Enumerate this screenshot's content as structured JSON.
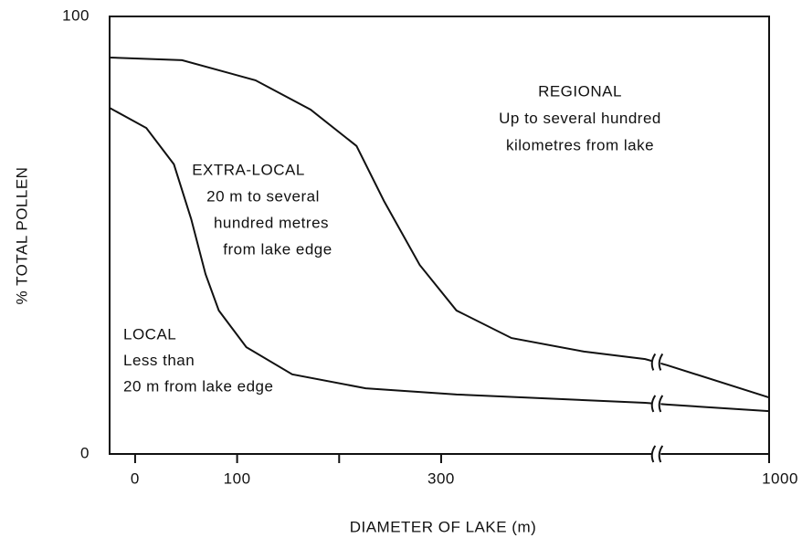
{
  "chart_data": {
    "type": "line",
    "xlabel": "DIAMETER OF LAKE (m)",
    "ylabel": "% TOTAL POLLEN",
    "xlim": [
      -25,
      1000
    ],
    "xbreak": [
      500,
      900
    ],
    "xticks": [
      0,
      100,
      {
        "value": 200,
        "label": null
      },
      300,
      1000
    ],
    "ylim": [
      0,
      100
    ],
    "yticks": [
      0,
      100
    ],
    "series": [
      {
        "name": "regional boundary",
        "color": "#111111",
        "x": [
          -25,
          46,
          118,
          172,
          217,
          244,
          279,
          315,
          369,
          440,
          500,
          900,
          1000
        ],
        "values": [
          90.6,
          90,
          85.4,
          78.7,
          70.4,
          57.8,
          43.2,
          32.8,
          26.5,
          23.4,
          21.7,
          20.3,
          12.9
        ]
      },
      {
        "name": "local boundary",
        "color": "#111111",
        "x": [
          -25,
          11,
          38,
          55,
          69,
          82,
          109,
          154,
          226,
          315,
          500,
          900,
          1000
        ],
        "values": [
          79.1,
          74.5,
          66.2,
          53.7,
          41.1,
          32.8,
          24.4,
          18.2,
          15.0,
          13.6,
          11.7,
          11.3,
          9.8
        ]
      }
    ],
    "annotations": [
      {
        "lines": [
          "REGIONAL",
          "Up to several hundred",
          "kilometres from lake"
        ]
      },
      {
        "lines": [
          "EXTRA-LOCAL",
          "20 m to several",
          "hundred metres",
          "from lake edge"
        ]
      },
      {
        "lines": [
          "LOCAL",
          "Less than",
          "20 m from lake edge"
        ]
      }
    ]
  }
}
